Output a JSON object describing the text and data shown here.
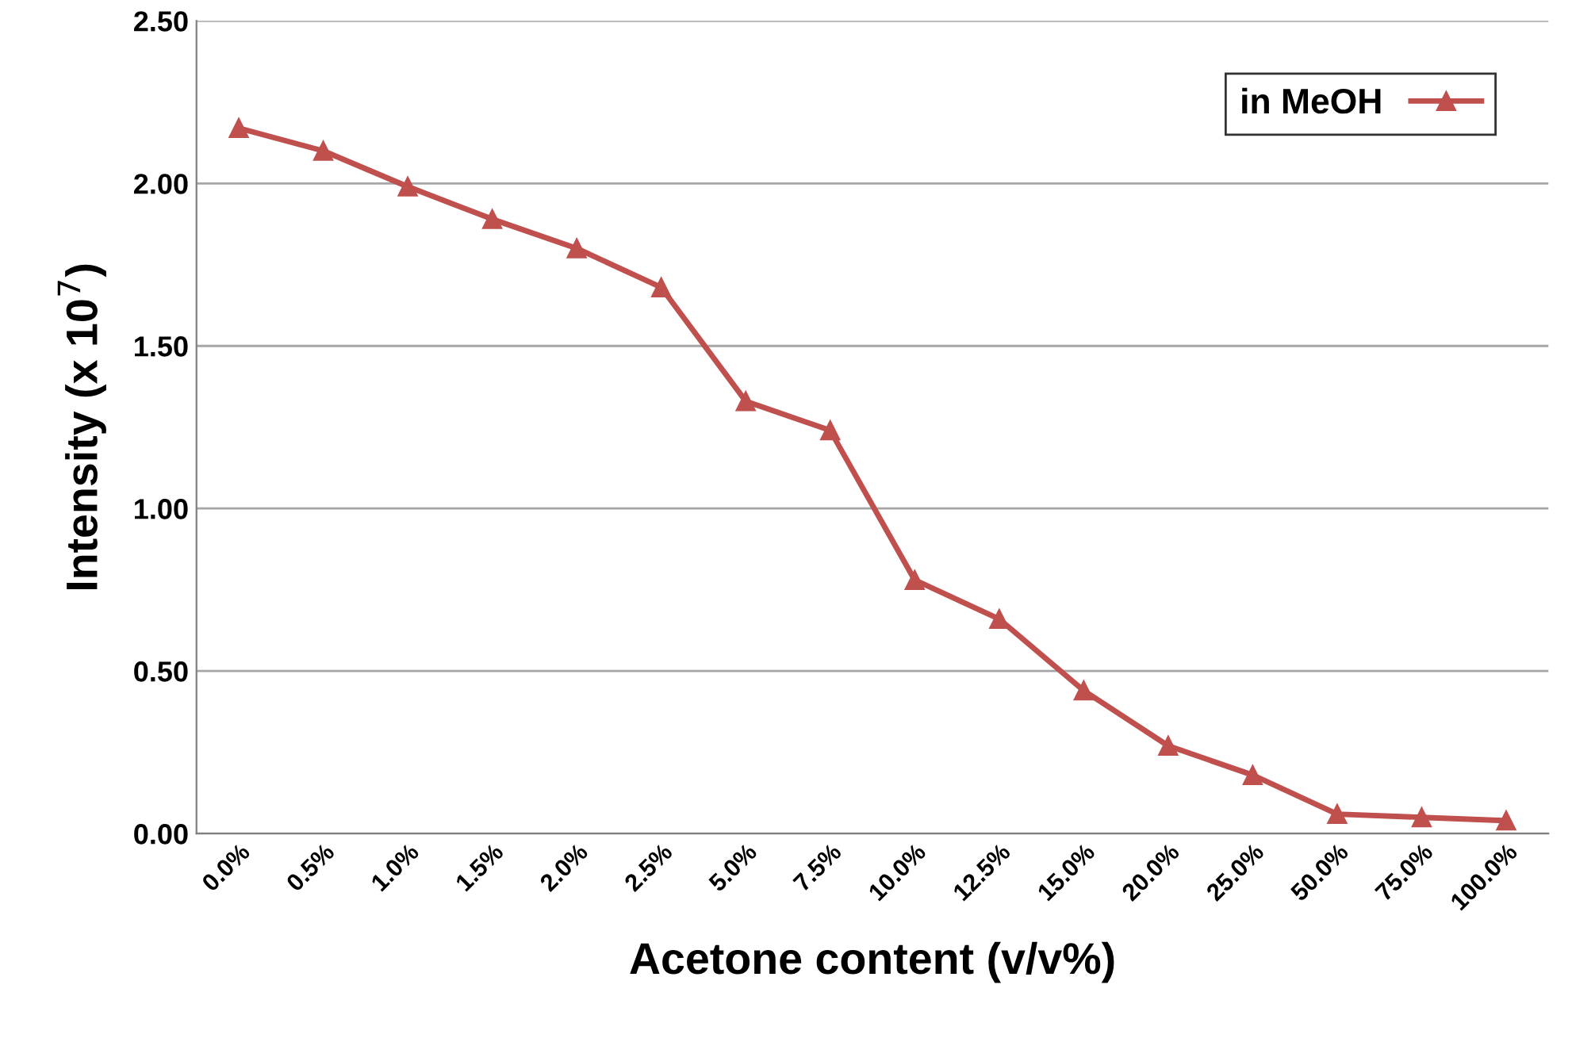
{
  "chart_data": {
    "type": "line",
    "xlabel": "Acetone content (v/v%)",
    "ylabel": "Intensity (x 10$^{7}$)",
    "categories": [
      "0.0%",
      "0.5%",
      "1.0%",
      "1.5%",
      "2.0%",
      "2.5%",
      "5.0%",
      "7.5%",
      "10.0%",
      "12.5%",
      "15.0%",
      "20.0%",
      "25.0%",
      "50.0%",
      "75.0%",
      "100.0%"
    ],
    "series": [
      {
        "name": "in MeOH",
        "color": "#c0504d",
        "values": [
          2.17,
          2.1,
          1.99,
          1.89,
          1.8,
          1.68,
          1.33,
          1.24,
          0.78,
          0.66,
          0.44,
          0.27,
          0.18,
          0.06,
          0.05,
          0.04
        ]
      }
    ],
    "ylim": [
      0,
      2.5
    ],
    "yticks": [
      {
        "value": 0,
        "label": "0.00"
      },
      {
        "value": 0.5,
        "label": "0.50"
      },
      {
        "value": 1,
        "label": "1.00"
      },
      {
        "value": 1.5,
        "label": "1.50"
      },
      {
        "value": 2,
        "label": "2.00"
      },
      {
        "value": 2.5,
        "label": "2.50"
      }
    ],
    "grid": "y",
    "legend": "top right",
    "marker": "triangle",
    "line_style": "solid"
  }
}
